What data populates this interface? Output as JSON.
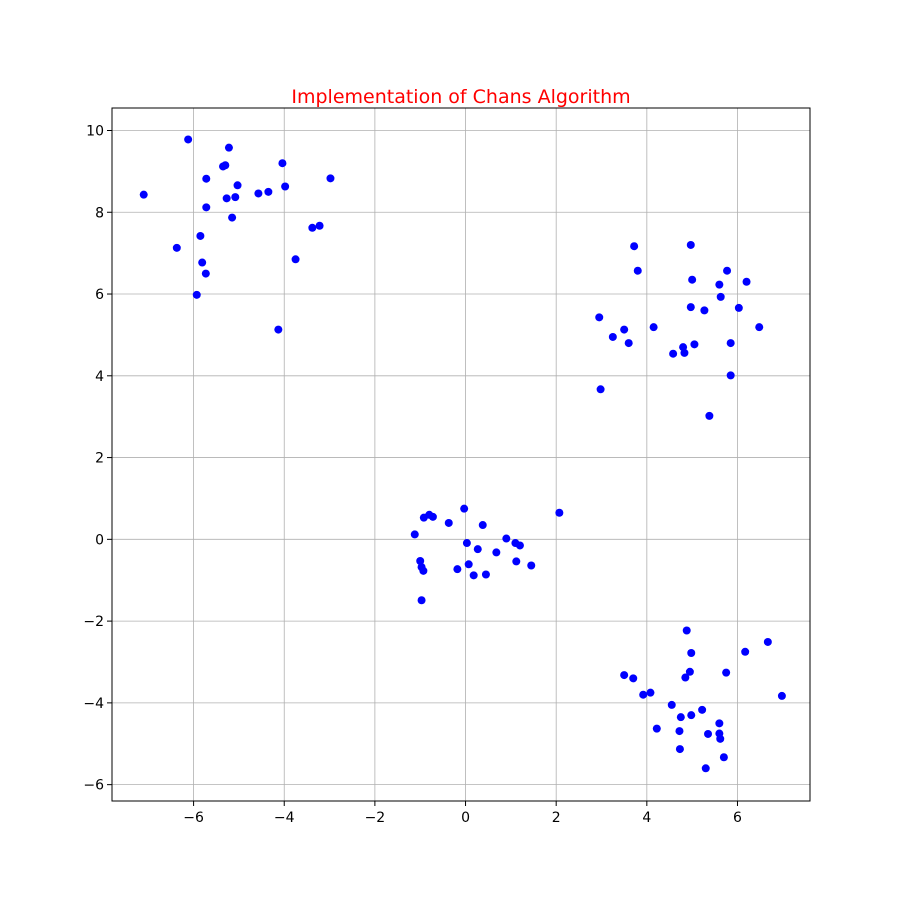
{
  "chart_data": {
    "type": "scatter",
    "title": "Implementation of Chans Algorithm",
    "title_color": "#ff0000",
    "point_color": "#0000ff",
    "grid": true,
    "xlabel": "",
    "ylabel": "",
    "xlim": [
      -7.8,
      7.6
    ],
    "ylim": [
      -6.4,
      10.55
    ],
    "xticks": [
      -6,
      -4,
      -2,
      0,
      2,
      4,
      6
    ],
    "yticks": [
      -6,
      -4,
      -2,
      0,
      2,
      4,
      6,
      8,
      10
    ],
    "xtick_labels": [
      "−6",
      "−4",
      "−2",
      "0",
      "2",
      "4",
      "6"
    ],
    "ytick_labels": [
      "−6",
      "−4",
      "−2",
      "0",
      "2",
      "4",
      "6",
      "8",
      "10"
    ],
    "points": [
      [
        -7.1,
        8.43
      ],
      [
        -6.12,
        9.78
      ],
      [
        -5.22,
        9.58
      ],
      [
        -5.35,
        9.12
      ],
      [
        -5.3,
        9.15
      ],
      [
        -5.72,
        8.82
      ],
      [
        -5.03,
        8.66
      ],
      [
        -4.57,
        8.46
      ],
      [
        -4.35,
        8.5
      ],
      [
        -4.04,
        9.2
      ],
      [
        -3.98,
        8.63
      ],
      [
        -2.98,
        8.83
      ],
      [
        -5.08,
        8.37
      ],
      [
        -5.27,
        8.34
      ],
      [
        -5.72,
        8.12
      ],
      [
        -5.15,
        7.87
      ],
      [
        -6.37,
        7.13
      ],
      [
        -5.85,
        7.42
      ],
      [
        -3.38,
        7.62
      ],
      [
        -3.22,
        7.67
      ],
      [
        -5.81,
        6.77
      ],
      [
        -5.73,
        6.5
      ],
      [
        -3.75,
        6.85
      ],
      [
        -5.93,
        5.98
      ],
      [
        -4.13,
        5.13
      ],
      [
        3.72,
        7.17
      ],
      [
        4.97,
        7.2
      ],
      [
        3.8,
        6.57
      ],
      [
        5.77,
        6.57
      ],
      [
        5.0,
        6.35
      ],
      [
        6.2,
        6.3
      ],
      [
        5.6,
        6.23
      ],
      [
        5.63,
        5.93
      ],
      [
        4.97,
        5.68
      ],
      [
        5.27,
        5.6
      ],
      [
        6.03,
        5.66
      ],
      [
        2.95,
        5.43
      ],
      [
        3.5,
        5.13
      ],
      [
        4.15,
        5.19
      ],
      [
        6.48,
        5.19
      ],
      [
        3.25,
        4.95
      ],
      [
        3.6,
        4.8
      ],
      [
        5.05,
        4.77
      ],
      [
        5.85,
        4.8
      ],
      [
        4.8,
        4.7
      ],
      [
        4.58,
        4.54
      ],
      [
        4.83,
        4.56
      ],
      [
        5.85,
        4.01
      ],
      [
        2.98,
        3.67
      ],
      [
        5.38,
        3.02
      ],
      [
        -0.03,
        0.75
      ],
      [
        2.07,
        0.65
      ],
      [
        -0.8,
        0.6
      ],
      [
        -0.72,
        0.55
      ],
      [
        -0.92,
        0.53
      ],
      [
        -0.37,
        0.4
      ],
      [
        0.38,
        0.35
      ],
      [
        -1.12,
        0.12
      ],
      [
        0.9,
        0.02
      ],
      [
        0.03,
        -0.09
      ],
      [
        1.1,
        -0.09
      ],
      [
        1.2,
        -0.15
      ],
      [
        0.27,
        -0.24
      ],
      [
        0.68,
        -0.32
      ],
      [
        -1.0,
        -0.53
      ],
      [
        1.12,
        -0.54
      ],
      [
        0.07,
        -0.61
      ],
      [
        1.45,
        -0.64
      ],
      [
        -0.97,
        -0.68
      ],
      [
        -0.18,
        -0.73
      ],
      [
        -0.93,
        -0.77
      ],
      [
        0.45,
        -0.86
      ],
      [
        0.18,
        -0.88
      ],
      [
        -0.97,
        -1.49
      ],
      [
        4.88,
        -2.23
      ],
      [
        6.67,
        -2.51
      ],
      [
        4.98,
        -2.78
      ],
      [
        6.17,
        -2.75
      ],
      [
        4.95,
        -3.24
      ],
      [
        5.75,
        -3.26
      ],
      [
        3.5,
        -3.32
      ],
      [
        3.7,
        -3.4
      ],
      [
        4.85,
        -3.38
      ],
      [
        6.98,
        -3.83
      ],
      [
        4.08,
        -3.75
      ],
      [
        3.92,
        -3.8
      ],
      [
        4.55,
        -4.05
      ],
      [
        5.22,
        -4.17
      ],
      [
        4.98,
        -4.3
      ],
      [
        4.75,
        -4.35
      ],
      [
        5.6,
        -4.5
      ],
      [
        4.22,
        -4.63
      ],
      [
        4.72,
        -4.69
      ],
      [
        5.35,
        -4.76
      ],
      [
        5.6,
        -4.75
      ],
      [
        5.62,
        -4.88
      ],
      [
        4.73,
        -5.13
      ],
      [
        5.7,
        -5.33
      ],
      [
        5.3,
        -5.6
      ]
    ]
  }
}
